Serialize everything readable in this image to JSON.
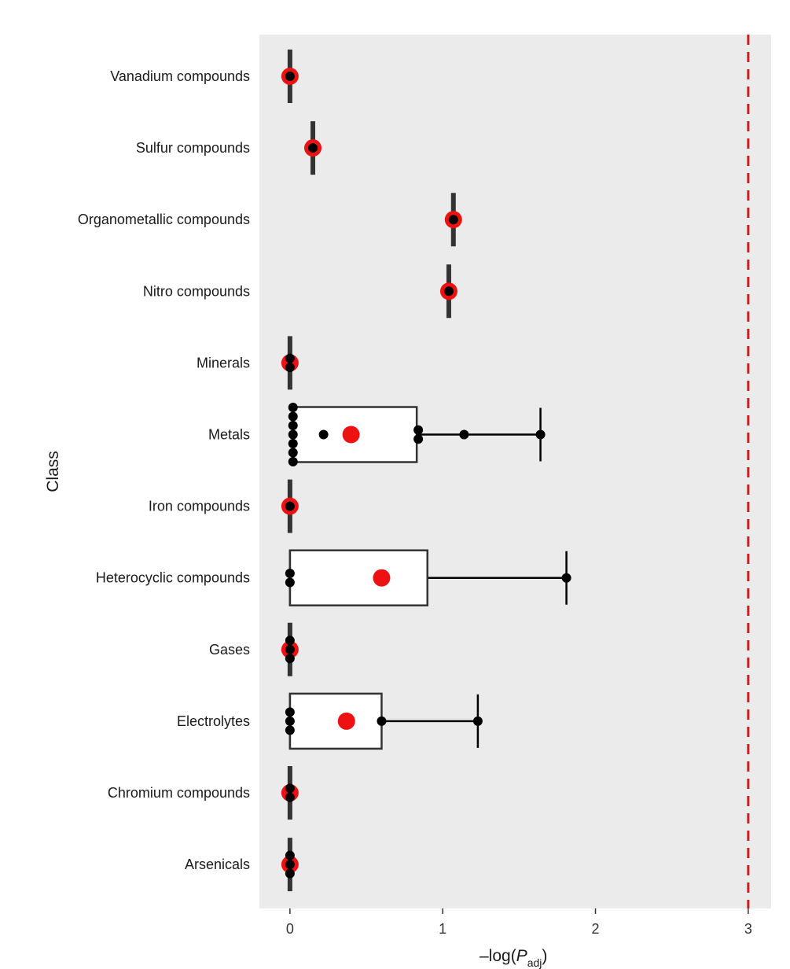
{
  "chart_data": {
    "type": "boxplot",
    "ylabel": "Class",
    "xlabel": {
      "prefix": "–log(",
      "var": "P",
      "sub": "adj",
      "suffix": ")"
    },
    "xlim": [
      -0.2,
      3.15
    ],
    "x_ticks": [
      0,
      1,
      2,
      3
    ],
    "x_tick_labels": [
      "0",
      "1",
      "2",
      "3"
    ],
    "threshold": 3,
    "grid": false,
    "categories": [
      "Vanadium compounds",
      "Sulfur compounds",
      "Organometallic compounds",
      "Nitro compounds",
      "Minerals",
      "Metals",
      "Iron compounds",
      "Heterocyclic compounds",
      "Gases",
      "Electrolytes",
      "Chromium compounds",
      "Arsenicals"
    ],
    "boxes": [
      {
        "category": "Vanadium compounds",
        "q1": 0,
        "median": 0,
        "q3": 0,
        "whisker_low": 0,
        "whisker_high": 0,
        "mean": 0,
        "points": [
          0
        ]
      },
      {
        "category": "Sulfur compounds",
        "q1": 0.15,
        "median": 0.15,
        "q3": 0.15,
        "whisker_low": 0.15,
        "whisker_high": 0.15,
        "mean": 0.15,
        "points": [
          0.15
        ]
      },
      {
        "category": "Organometallic compounds",
        "q1": 1.07,
        "median": 1.07,
        "q3": 1.07,
        "whisker_low": 1.07,
        "whisker_high": 1.07,
        "mean": 1.07,
        "points": [
          1.07
        ]
      },
      {
        "category": "Nitro compounds",
        "q1": 1.04,
        "median": 1.04,
        "q3": 1.04,
        "whisker_low": 1.04,
        "whisker_high": 1.04,
        "mean": 1.04,
        "points": [
          1.04
        ]
      },
      {
        "category": "Minerals",
        "q1": 0,
        "median": 0,
        "q3": 0,
        "whisker_low": 0,
        "whisker_high": 0,
        "mean": 0,
        "points": [
          0,
          0
        ]
      },
      {
        "category": "Metals",
        "q1": 0.02,
        "median": 0.02,
        "q3": 0.83,
        "whisker_low": 0.02,
        "whisker_high": 1.64,
        "mean": 0.4,
        "points": [
          0.02,
          0.02,
          0.02,
          0.02,
          0.02,
          0.02,
          0.02,
          0.22,
          0.84,
          0.84,
          1.14,
          1.64
        ]
      },
      {
        "category": "Iron compounds",
        "q1": 0,
        "median": 0,
        "q3": 0,
        "whisker_low": 0,
        "whisker_high": 0,
        "mean": 0,
        "points": [
          0
        ]
      },
      {
        "category": "Heterocyclic compounds",
        "q1": 0,
        "median": 0,
        "q3": 0.9,
        "whisker_low": 0,
        "whisker_high": 1.81,
        "mean": 0.6,
        "points": [
          0,
          0,
          1.81
        ]
      },
      {
        "category": "Gases",
        "q1": 0,
        "median": 0,
        "q3": 0,
        "whisker_low": 0,
        "whisker_high": 0,
        "mean": 0,
        "points": [
          0,
          0,
          0
        ]
      },
      {
        "category": "Electrolytes",
        "q1": 0,
        "median": 0,
        "q3": 0.6,
        "whisker_low": 0,
        "whisker_high": 1.23,
        "mean": 0.37,
        "points": [
          0,
          0,
          0,
          0.6,
          1.23
        ]
      },
      {
        "category": "Chromium compounds",
        "q1": 0,
        "median": 0,
        "q3": 0,
        "whisker_low": 0,
        "whisker_high": 0,
        "mean": 0,
        "points": [
          0,
          0
        ]
      },
      {
        "category": "Arsenicals",
        "q1": 0,
        "median": 0,
        "q3": 0,
        "whisker_low": 0,
        "whisker_high": 0,
        "mean": 0,
        "points": [
          0,
          0,
          0
        ]
      }
    ],
    "colors": {
      "panel": "#ebebeb",
      "mean": "#ee1111",
      "point": "#000000",
      "box_stroke": "#333333",
      "box_fill": "#ffffff",
      "threshold": "#cc1f1f"
    }
  }
}
